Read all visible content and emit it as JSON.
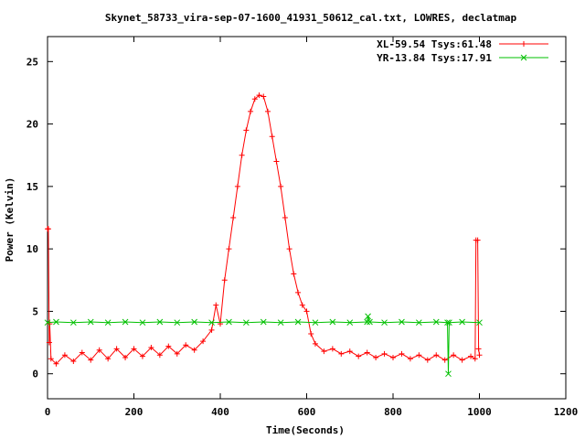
{
  "chart_data": {
    "type": "line",
    "title": "Skynet_58733_vira-sep-07-1600_41931_50612_cal.txt, LOWRES, declatmap",
    "xlabel": "Time(Seconds)",
    "ylabel": "Power (Kelvin)",
    "xlim": [
      0,
      1200
    ],
    "ylim": [
      -2,
      27
    ],
    "xticks": [
      0,
      200,
      400,
      600,
      800,
      1000,
      1200
    ],
    "yticks": [
      0,
      5,
      10,
      15,
      20,
      25
    ],
    "legend_position": "top-right",
    "grid": false,
    "series": [
      {
        "name": "XL-59.54 Tsys:61.48",
        "color": "#ff0000",
        "marker": "plus",
        "points": [
          [
            0,
            11.6
          ],
          [
            2,
            11.6
          ],
          [
            4,
            2.5
          ],
          [
            5,
            4.0
          ],
          [
            8,
            1.2
          ],
          [
            20,
            0.8
          ],
          [
            40,
            1.5
          ],
          [
            60,
            1.0
          ],
          [
            80,
            1.7
          ],
          [
            100,
            1.1
          ],
          [
            120,
            1.9
          ],
          [
            140,
            1.2
          ],
          [
            160,
            2.0
          ],
          [
            180,
            1.3
          ],
          [
            200,
            2.0
          ],
          [
            220,
            1.4
          ],
          [
            240,
            2.1
          ],
          [
            260,
            1.5
          ],
          [
            280,
            2.2
          ],
          [
            300,
            1.6
          ],
          [
            320,
            2.3
          ],
          [
            340,
            1.9
          ],
          [
            360,
            2.6
          ],
          [
            380,
            3.5
          ],
          [
            390,
            5.5
          ],
          [
            400,
            4.0
          ],
          [
            410,
            7.5
          ],
          [
            420,
            10.0
          ],
          [
            430,
            12.5
          ],
          [
            440,
            15.0
          ],
          [
            450,
            17.5
          ],
          [
            460,
            19.5
          ],
          [
            470,
            21.0
          ],
          [
            480,
            22.0
          ],
          [
            490,
            22.3
          ],
          [
            500,
            22.2
          ],
          [
            510,
            21.0
          ],
          [
            520,
            19.0
          ],
          [
            530,
            17.0
          ],
          [
            540,
            15.0
          ],
          [
            550,
            12.5
          ],
          [
            560,
            10.0
          ],
          [
            570,
            8.0
          ],
          [
            580,
            6.5
          ],
          [
            590,
            5.5
          ],
          [
            600,
            5.0
          ],
          [
            610,
            3.2
          ],
          [
            620,
            2.4
          ],
          [
            640,
            1.8
          ],
          [
            660,
            2.0
          ],
          [
            680,
            1.6
          ],
          [
            700,
            1.8
          ],
          [
            720,
            1.4
          ],
          [
            740,
            1.7
          ],
          [
            760,
            1.3
          ],
          [
            780,
            1.6
          ],
          [
            800,
            1.3
          ],
          [
            820,
            1.6
          ],
          [
            840,
            1.2
          ],
          [
            860,
            1.5
          ],
          [
            880,
            1.1
          ],
          [
            900,
            1.5
          ],
          [
            920,
            1.1
          ],
          [
            940,
            1.5
          ],
          [
            960,
            1.1
          ],
          [
            980,
            1.4
          ],
          [
            990,
            1.2
          ],
          [
            992,
            10.7
          ],
          [
            996,
            10.7
          ],
          [
            998,
            2.0
          ],
          [
            1000,
            1.5
          ]
        ]
      },
      {
        "name": "YR-13.84 Tsys:17.91",
        "color": "#00c000",
        "marker": "cross",
        "points": [
          [
            0,
            4.1
          ],
          [
            20,
            4.15
          ],
          [
            60,
            4.1
          ],
          [
            100,
            4.15
          ],
          [
            140,
            4.1
          ],
          [
            180,
            4.15
          ],
          [
            220,
            4.1
          ],
          [
            260,
            4.15
          ],
          [
            300,
            4.1
          ],
          [
            340,
            4.15
          ],
          [
            380,
            4.1
          ],
          [
            420,
            4.15
          ],
          [
            460,
            4.1
          ],
          [
            500,
            4.15
          ],
          [
            540,
            4.1
          ],
          [
            580,
            4.15
          ],
          [
            620,
            4.1
          ],
          [
            660,
            4.15
          ],
          [
            700,
            4.1
          ],
          [
            740,
            4.15
          ],
          [
            742,
            4.6
          ],
          [
            746,
            4.15
          ],
          [
            780,
            4.1
          ],
          [
            820,
            4.15
          ],
          [
            860,
            4.1
          ],
          [
            900,
            4.15
          ],
          [
            926,
            4.1
          ],
          [
            928,
            0.0
          ],
          [
            930,
            4.1
          ],
          [
            960,
            4.15
          ],
          [
            1000,
            4.1
          ]
        ]
      }
    ]
  }
}
